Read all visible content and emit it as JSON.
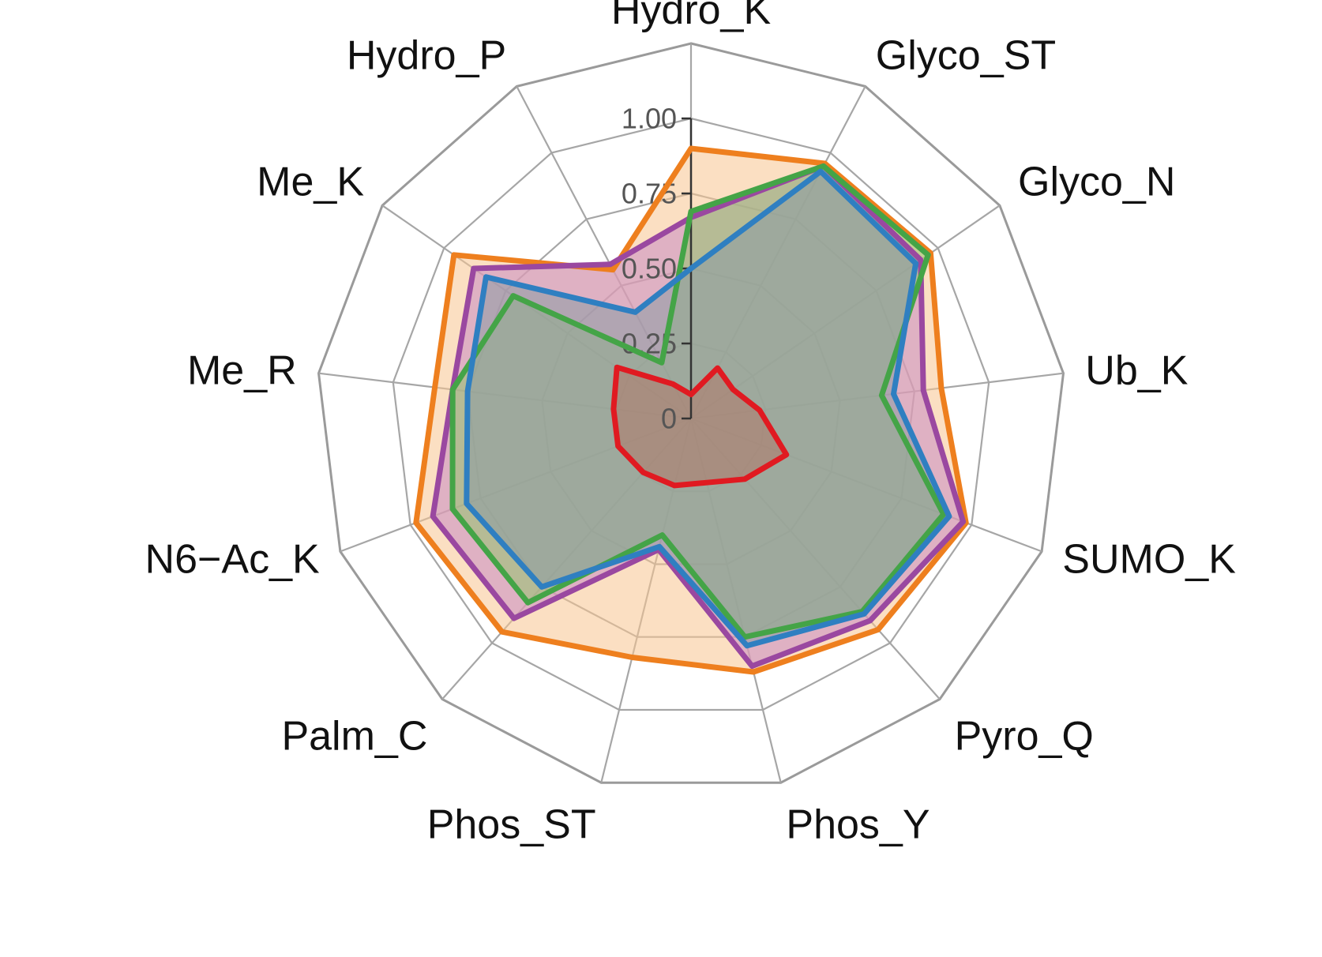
{
  "chart_data": {
    "type": "radar",
    "categories": [
      "Hydro_K",
      "Glyco_ST",
      "Glyco_N",
      "Ub_K",
      "SUMO_K",
      "Pyro_Q",
      "Phos_Y",
      "Phos_ST",
      "Palm_C",
      "N6−Ac_K",
      "Me_R",
      "Me_K",
      "Hydro_P"
    ],
    "rlim": [
      0,
      1
    ],
    "ticks": [
      0,
      0.25,
      0.5,
      0.75,
      1.0
    ],
    "tick_labels": [
      "0",
      "0.25",
      "0.50",
      "0.75",
      "1.00"
    ],
    "grid_levels": [
      0.25,
      0.5,
      0.75,
      1.0,
      1.25
    ],
    "series": [
      {
        "color": "#EE7F1E",
        "fill": "#F7C58F",
        "values": [
          0.9,
          0.96,
          0.97,
          0.84,
          0.98,
          0.94,
          0.87,
          0.82,
          0.95,
          0.98,
          0.86,
          0.96,
          0.56
        ]
      },
      {
        "color": "#9A48A0",
        "fill": "#C88BC4",
        "values": [
          0.67,
          0.95,
          0.93,
          0.78,
          0.97,
          0.9,
          0.85,
          0.45,
          0.89,
          0.92,
          0.8,
          0.88,
          0.58
        ]
      },
      {
        "color": "#44A447",
        "fill": "#94C36F",
        "values": [
          0.69,
          0.95,
          0.96,
          0.64,
          0.9,
          0.86,
          0.75,
          0.4,
          0.82,
          0.85,
          0.8,
          0.72,
          0.21
        ]
      },
      {
        "color": "#2F7FC1",
        "fill": "#8A9AA4",
        "values": [
          0.5,
          0.93,
          0.91,
          0.68,
          0.92,
          0.87,
          0.78,
          0.44,
          0.75,
          0.8,
          0.75,
          0.83,
          0.4
        ]
      },
      {
        "color": "#E01A21",
        "fill": "#B07868",
        "values": [
          0.08,
          0.19,
          0.17,
          0.23,
          0.34,
          0.27,
          0.22,
          0.23,
          0.24,
          0.26,
          0.26,
          0.3,
          0.13
        ]
      }
    ]
  }
}
